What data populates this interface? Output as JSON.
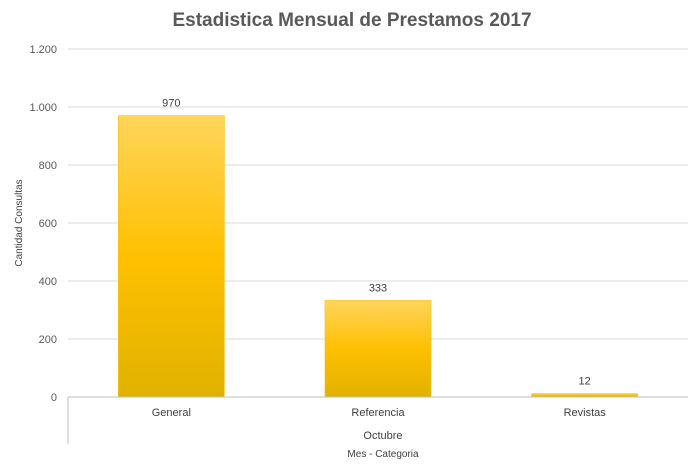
{
  "chart_data": {
    "type": "bar",
    "title": "Estadistica Mensual de Prestamos 2017",
    "categories": [
      "General",
      "Referencia",
      "Revistas"
    ],
    "values": [
      970,
      333,
      12
    ],
    "data_labels": [
      "970",
      "333",
      "12"
    ],
    "group_label": "Octubre",
    "xlabel": "Mes - Categoria",
    "ylabel": "Cantidad Consultas",
    "ylim": [
      0,
      1200
    ],
    "yticks": [
      0,
      200,
      400,
      600,
      800,
      1000,
      1200
    ],
    "ytick_labels": [
      "0",
      "200",
      "400",
      "600",
      "800",
      "1.000",
      "1.200"
    ],
    "grid": true,
    "legend": "none"
  },
  "colors": {
    "bar_top": "#ffd55c",
    "bar_mid": "#ffc000",
    "bar_bottom": "#e0b200",
    "bar_edge": "#ffc000",
    "title": "#595959"
  }
}
